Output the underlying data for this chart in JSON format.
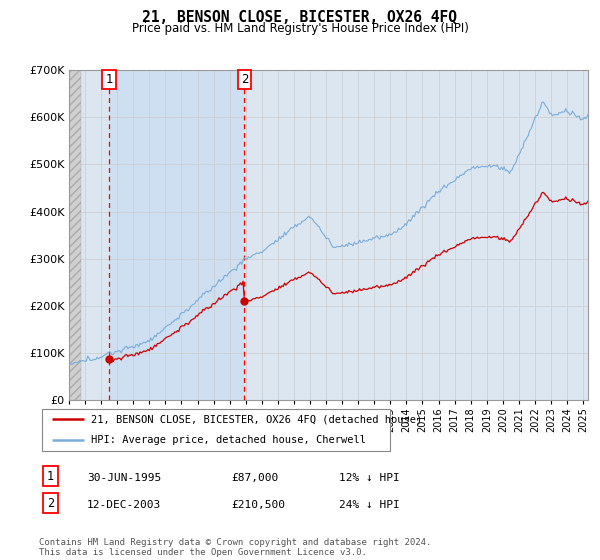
{
  "title": "21, BENSON CLOSE, BICESTER, OX26 4FQ",
  "subtitle": "Price paid vs. HM Land Registry's House Price Index (HPI)",
  "ylim": [
    0,
    700000
  ],
  "yticks": [
    0,
    100000,
    200000,
    300000,
    400000,
    500000,
    600000,
    700000
  ],
  "ytick_labels": [
    "£0",
    "£100K",
    "£200K",
    "£300K",
    "£400K",
    "£500K",
    "£600K",
    "£700K"
  ],
  "hpi_color": "#7aadda",
  "price_color": "#cc0000",
  "grid_color": "#cccccc",
  "plot_bg_color": "#dce6f1",
  "hatch_color": "#c8c8c8",
  "sale1_date": 1995.5,
  "sale1_price": 87000,
  "sale1_label": "1",
  "sale2_date": 2003.92,
  "sale2_price": 210500,
  "sale2_label": "2",
  "legend_line1": "21, BENSON CLOSE, BICESTER, OX26 4FQ (detached house)",
  "legend_line2": "HPI: Average price, detached house, Cherwell",
  "table_row1": [
    "1",
    "30-JUN-1995",
    "£87,000",
    "12% ↓ HPI"
  ],
  "table_row2": [
    "2",
    "12-DEC-2003",
    "£210,500",
    "24% ↓ HPI"
  ],
  "footnote": "Contains HM Land Registry data © Crown copyright and database right 2024.\nThis data is licensed under the Open Government Licence v3.0.",
  "xstart": 1993.0,
  "xend": 2025.3
}
